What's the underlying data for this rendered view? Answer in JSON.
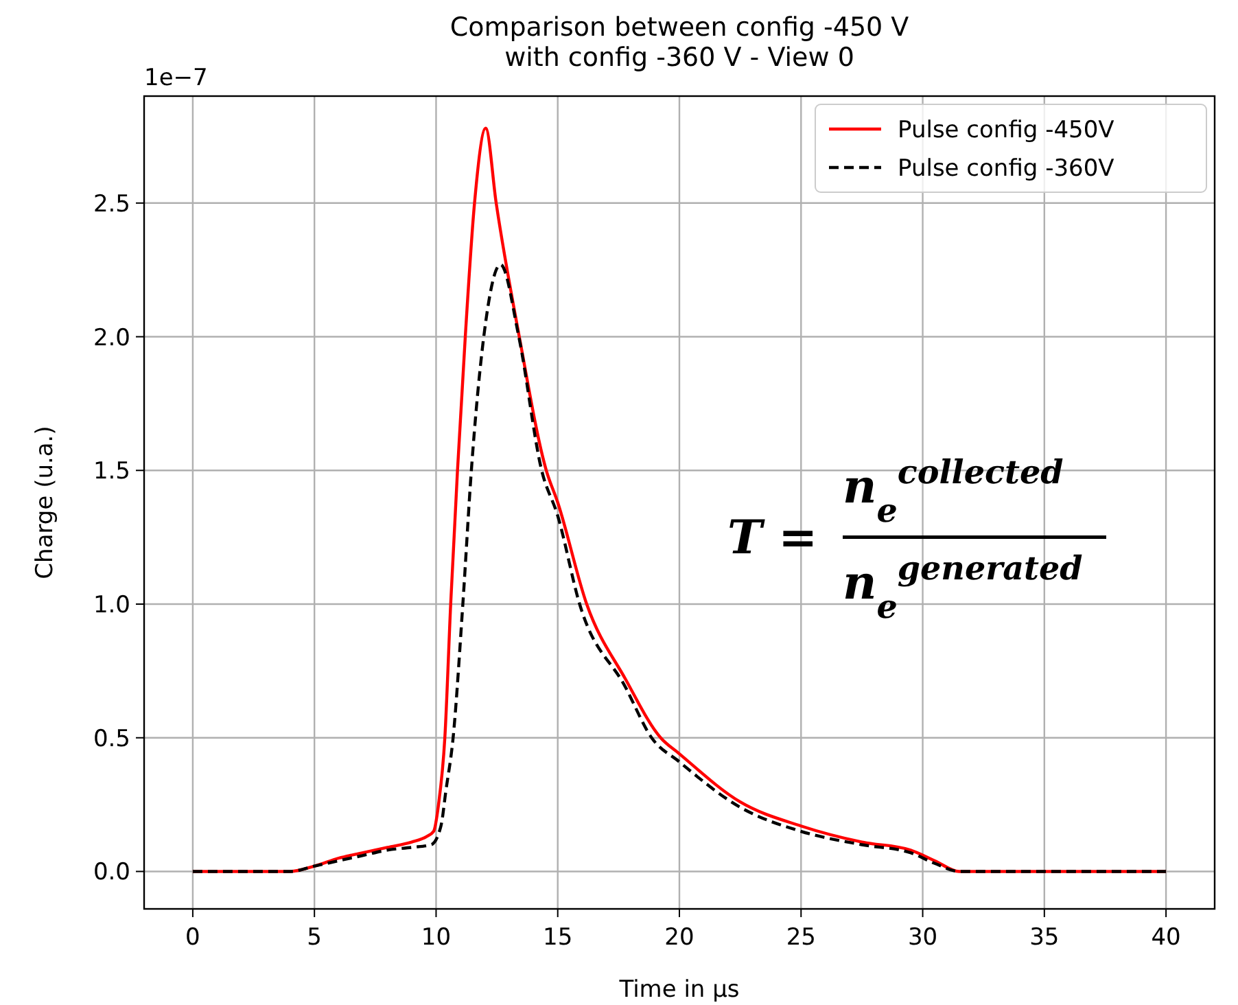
{
  "chart_data": {
    "type": "line",
    "title": "Comparison between config -450 V\nwith config -360 V - View 0",
    "xlabel": "Time in μs",
    "ylabel": "Charge (u.a.)",
    "annotations": [
      "1e−7",
      "T =",
      "n$_{e}$$^{collected}$",
      "n$_{e}$$^{generated}$"
    ],
    "xlim": [
      -2,
      42
    ],
    "ylim": [
      -0.14,
      2.9
    ],
    "xticks": [
      0,
      5,
      10,
      15,
      20,
      25,
      30,
      35,
      40
    ],
    "yticks": [
      {
        "value": 0,
        "label": "0.0"
      },
      {
        "value": 0.5,
        "label": "0.5"
      },
      {
        "value": 1,
        "label": "1.0"
      },
      {
        "value": 1.5,
        "label": "1.5"
      },
      {
        "value": 2,
        "label": "2.0"
      },
      {
        "value": 2.5,
        "label": "2.5"
      }
    ],
    "grid": true,
    "legend": "top right",
    "marker": "none",
    "series": [
      {
        "name": "Pulse config -450V",
        "color": "#ff0000",
        "line_style": "solid",
        "x": [
          0,
          2,
          4,
          5,
          6,
          7,
          8,
          9,
          9.6,
          9.9,
          10.1,
          10.36,
          10.6,
          10.88,
          11.2,
          11.58,
          12.04,
          12.47,
          13.42,
          14.53,
          15,
          16.19,
          17.78,
          19.23,
          20,
          22.5,
          25,
          27.5,
          29.5,
          30.5,
          31.5,
          32,
          35,
          40
        ],
        "values": [
          0,
          0,
          0,
          0.02,
          0.05,
          0.07,
          0.09,
          0.11,
          0.13,
          0.15,
          0.25,
          0.5,
          1,
          1.5,
          2,
          2.5,
          2.78,
          2.5,
          2,
          1.5,
          1.38,
          1,
          0.72,
          0.5,
          0.44,
          0.26,
          0.17,
          0.11,
          0.08,
          0.04,
          0,
          0,
          0,
          0
        ]
      },
      {
        "name": "Pulse config -360V",
        "color": "#000000",
        "line_style": "dashed",
        "x": [
          0,
          2,
          4,
          5,
          6,
          7,
          8,
          9,
          9.8,
          10.2,
          10.4,
          10.7,
          11.1,
          11.45,
          11.96,
          12.65,
          13.4,
          14.34,
          15,
          15.9,
          17.78,
          18.86,
          20,
          22.5,
          25,
          27.5,
          29.5,
          30.5,
          31.5,
          32,
          35,
          40
        ],
        "values": [
          0,
          0,
          0,
          0.02,
          0.04,
          0.06,
          0.08,
          0.09,
          0.1,
          0.17,
          0.3,
          0.5,
          1,
          1.5,
          2,
          2.27,
          2,
          1.5,
          1.33,
          1,
          0.69,
          0.5,
          0.41,
          0.24,
          0.15,
          0.1,
          0.07,
          0.03,
          0,
          0,
          0,
          0
        ]
      }
    ]
  }
}
